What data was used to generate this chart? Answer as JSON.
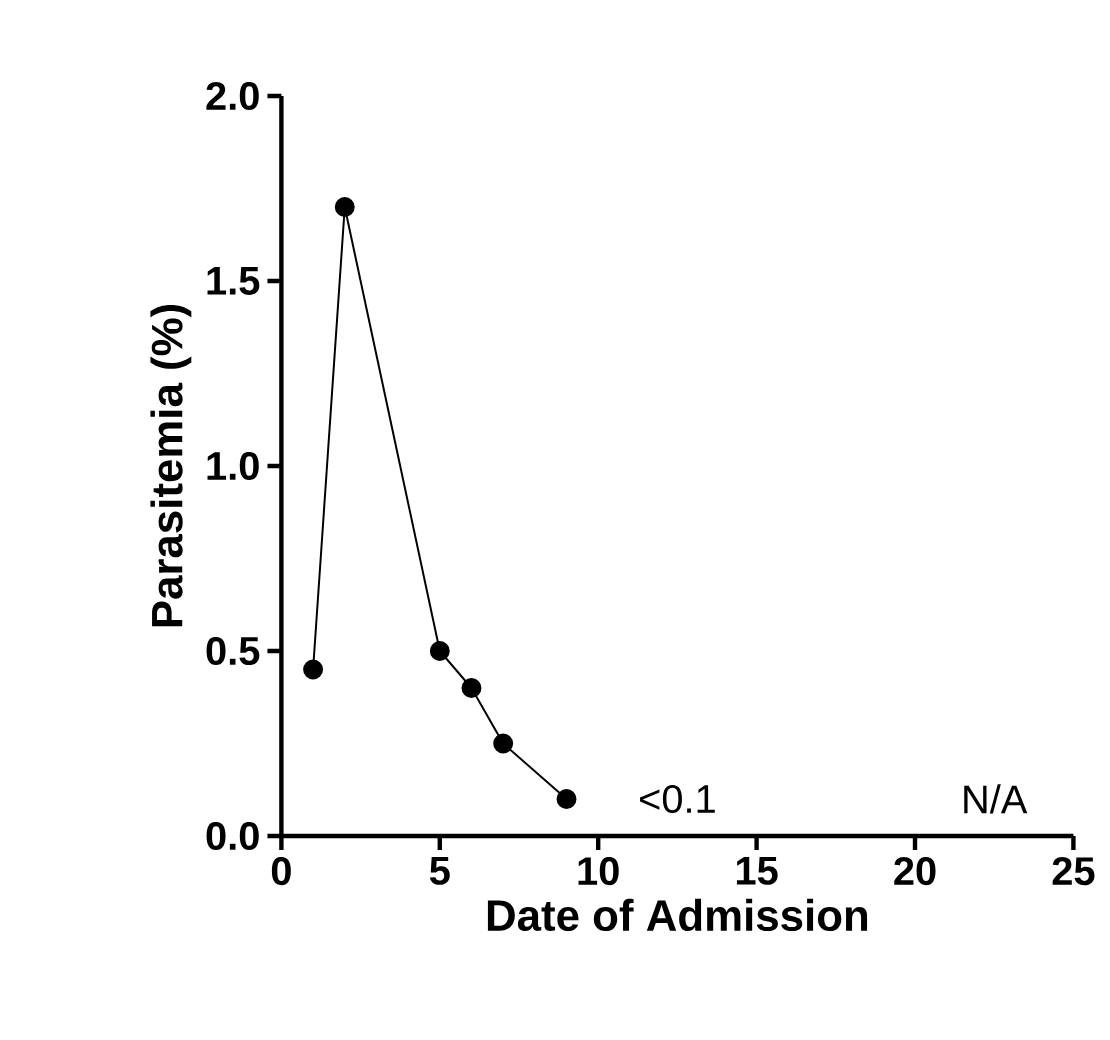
{
  "chart_data": {
    "type": "line",
    "xlabel": "Date of Admission",
    "ylabel": "Parasitemia (%)",
    "x": [
      1,
      2,
      5,
      6,
      7,
      9
    ],
    "series": [
      {
        "color": "#000000",
        "values": [
          0.45,
          1.7,
          0.5,
          0.4,
          0.25,
          0.1
        ]
      }
    ],
    "xlim": [
      0,
      25
    ],
    "xticks": [
      0,
      5,
      10,
      15,
      20,
      25
    ],
    "ylim": [
      0,
      2
    ],
    "yticks": [
      {
        "value": 0,
        "label": "0.0"
      },
      {
        "value": 0.5,
        "label": "0.5"
      },
      {
        "value": 1,
        "label": "1.0"
      },
      {
        "value": 1.5,
        "label": "1.5"
      },
      {
        "value": 2,
        "label": "2.0"
      }
    ],
    "annotations": [
      "<0.1",
      "N/A"
    ],
    "marker": "circle",
    "line_style": "solid"
  }
}
